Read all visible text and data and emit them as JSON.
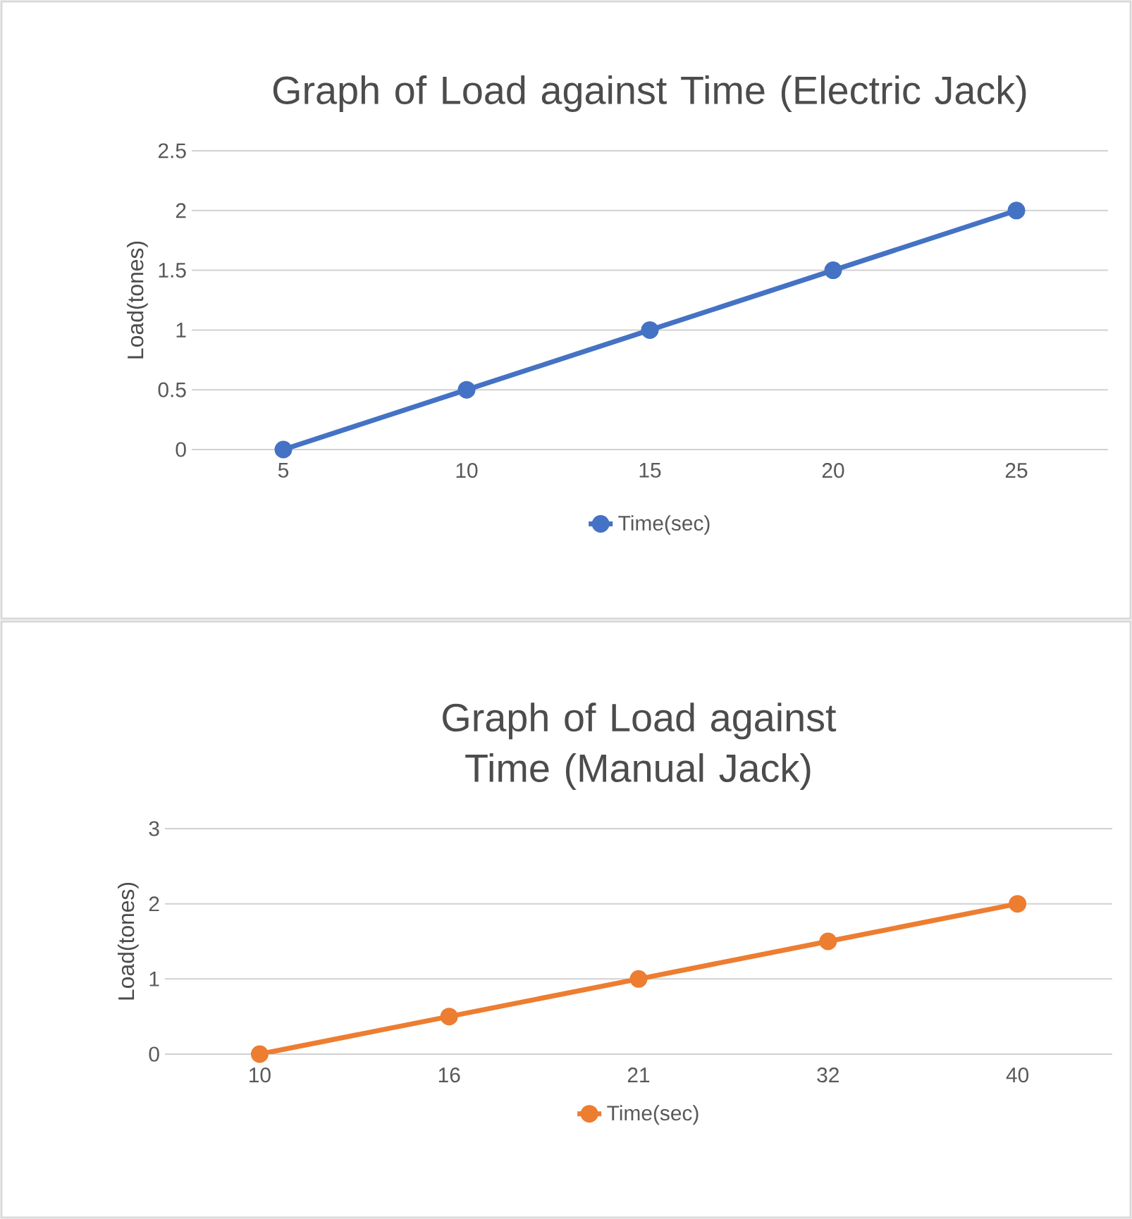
{
  "chart_data": [
    {
      "type": "line",
      "title": "Graph of Load against Time (Electric Jack)",
      "ylabel": "Load(tones)",
      "categories": [
        "5",
        "10",
        "15",
        "20",
        "25"
      ],
      "series": [
        {
          "name": "Time(sec)",
          "color": "#4472c4",
          "values": [
            0,
            0.5,
            1,
            1.5,
            2
          ]
        }
      ],
      "ylim": [
        0,
        2.5
      ],
      "yticks": [
        0,
        0.5,
        1,
        1.5,
        2,
        2.5
      ],
      "grid": "y",
      "legend": "bottom",
      "marker": "circle"
    },
    {
      "type": "line",
      "title": "Graph of Load against Time (Manual Jack)",
      "ylabel": "Load(tones)",
      "categories": [
        "10",
        "16",
        "21",
        "32",
        "40"
      ],
      "series": [
        {
          "name": "Time(sec)",
          "color": "#ed7d31",
          "values": [
            0,
            0.5,
            1,
            1.5,
            2
          ]
        }
      ],
      "ylim": [
        0,
        3
      ],
      "yticks": [
        0,
        1,
        2,
        3
      ],
      "grid": "y",
      "legend": "bottom",
      "marker": "circle"
    }
  ]
}
